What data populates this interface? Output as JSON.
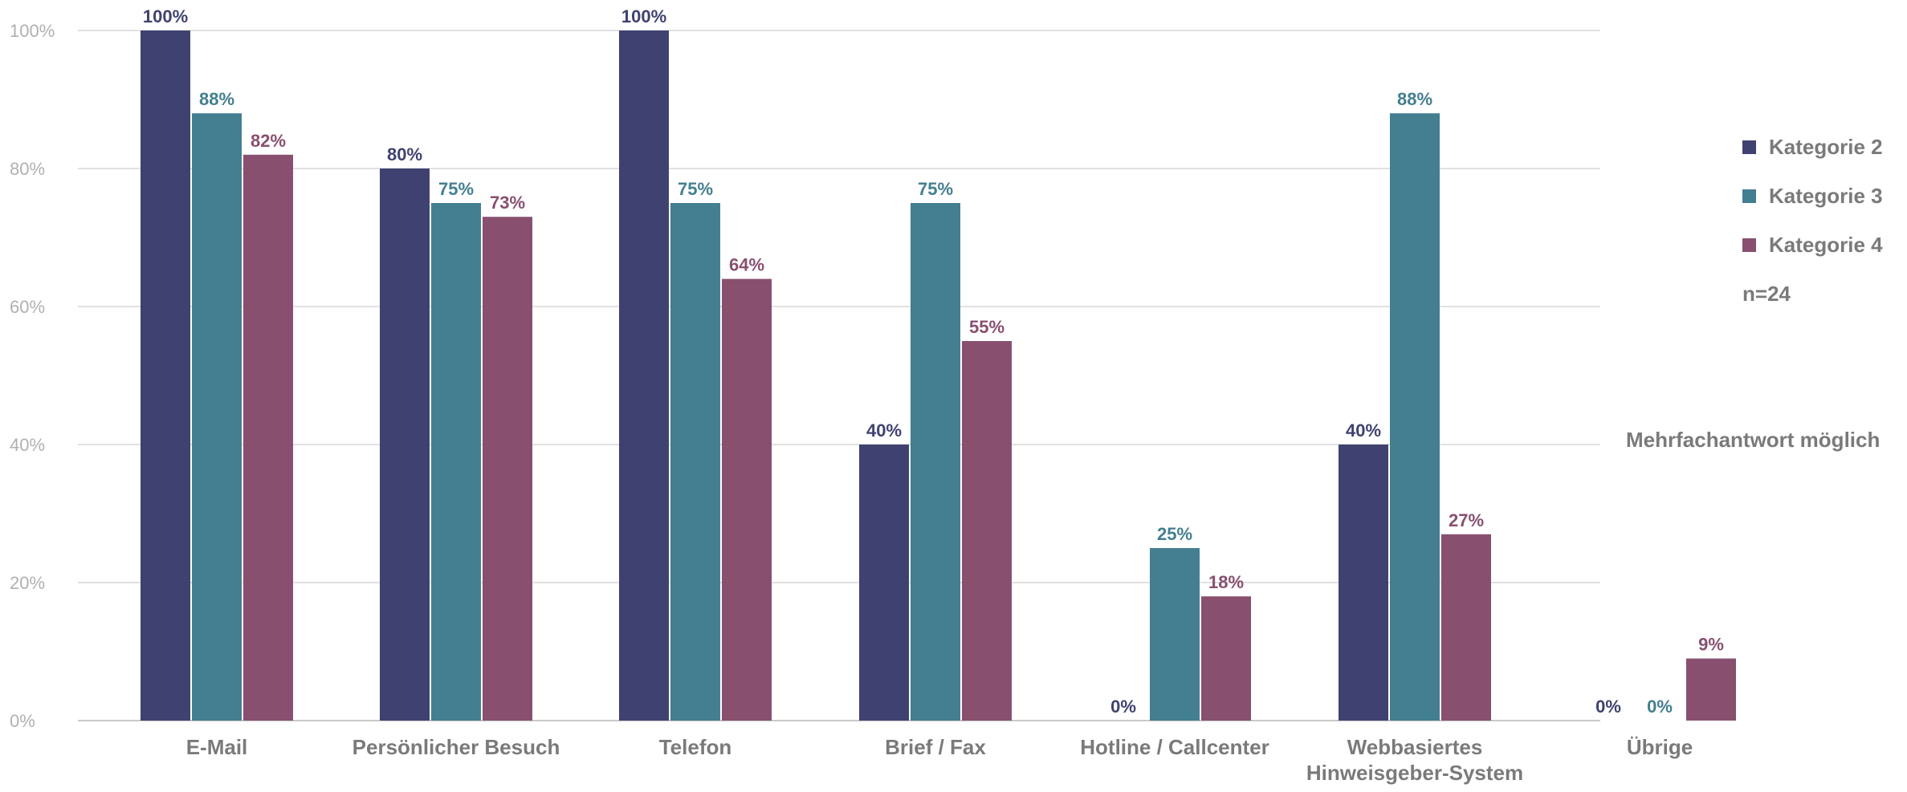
{
  "chart_data": {
    "type": "bar",
    "categories": [
      [
        "E-Mail"
      ],
      [
        "Persönlicher Besuch"
      ],
      [
        "Telefon"
      ],
      [
        "Brief / Fax"
      ],
      [
        "Hotline / Callcenter"
      ],
      [
        "Webbasiertes",
        "Hinweisgeber-System"
      ],
      [
        "Übrige"
      ]
    ],
    "series": [
      {
        "name": "Kategorie 2",
        "color": "#3f4270",
        "values": [
          100,
          80,
          100,
          40,
          0,
          40,
          0
        ]
      },
      {
        "name": "Kategorie 3",
        "color": "#437f90",
        "values": [
          88,
          75,
          75,
          75,
          25,
          88,
          0
        ]
      },
      {
        "name": "Kategorie 4",
        "color": "#884f6f",
        "values": [
          82,
          73,
          64,
          55,
          18,
          27,
          9
        ]
      }
    ],
    "ylim": [
      0,
      100
    ],
    "yticks": [
      0,
      20,
      40,
      60,
      80,
      100
    ],
    "ytick_labels": [
      "0%",
      "20%",
      "40%",
      "60%",
      "80%",
      "100%"
    ],
    "value_suffix": "%",
    "grid": true,
    "legend_position": "right"
  },
  "legend": {
    "items": [
      "Kategorie 2",
      "Kategorie 3",
      "Kategorie 4"
    ],
    "n_label": "n=24"
  },
  "note": "Mehrfachantwort möglich"
}
